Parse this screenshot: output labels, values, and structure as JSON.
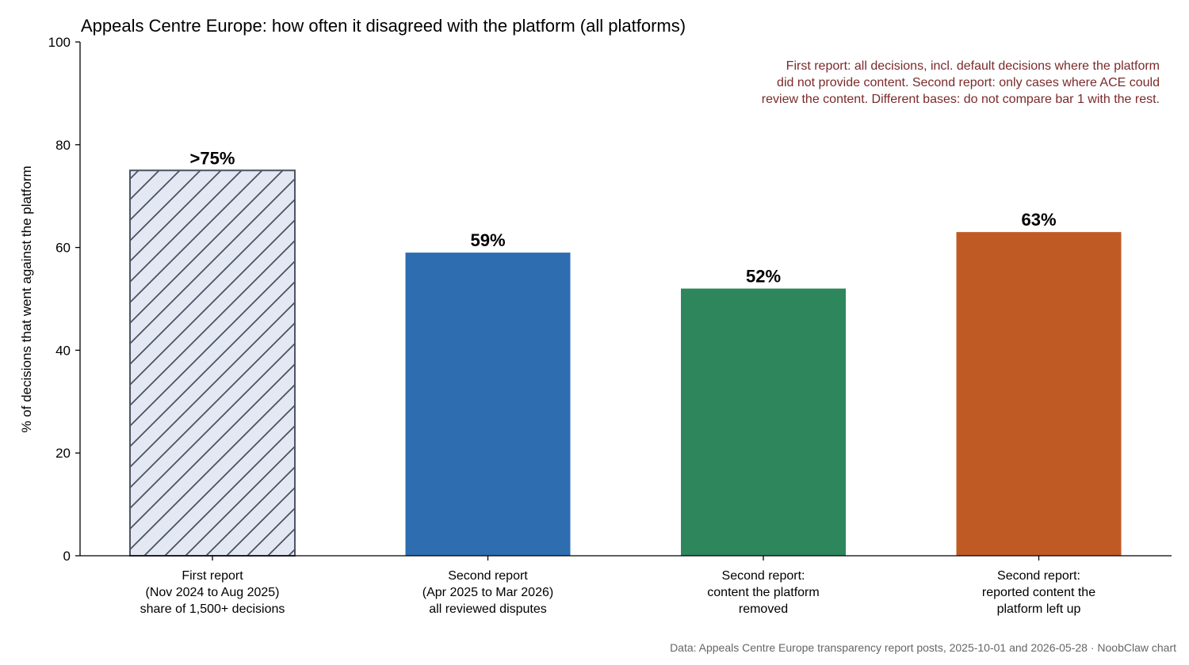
{
  "chart_data": {
    "type": "bar",
    "title": "Appeals Centre Europe: how often it disagreed with the platform (all platforms)",
    "xlabel": "",
    "ylabel": "% of decisions that went against the platform",
    "ylim": [
      0,
      100
    ],
    "yticks": [
      0,
      20,
      40,
      60,
      80,
      100
    ],
    "grid": false,
    "categories": [
      [
        "First report",
        "(Nov 2024 to Aug 2025)",
        "share of 1,500+ decisions"
      ],
      [
        "Second report",
        "(Apr 2025 to Mar 2026)",
        "all reviewed disputes"
      ],
      [
        "Second report:",
        "content the platform",
        "removed"
      ],
      [
        "Second report:",
        "reported content the",
        "platform left up"
      ]
    ],
    "values": [
      75,
      59,
      52,
      63
    ],
    "value_labels": [
      ">75%",
      "59%",
      "52%",
      "63%"
    ],
    "bar_styles": [
      {
        "fill": "#e3e8f2",
        "edge": "#4a5263",
        "hatch": true
      },
      {
        "fill": "#2d6db0",
        "edge": "#2d6db0",
        "hatch": false
      },
      {
        "fill": "#2e875c",
        "edge": "#2e875c",
        "hatch": false
      },
      {
        "fill": "#c05a24",
        "edge": "#c05a24",
        "hatch": false
      }
    ],
    "annotation": [
      "First report: all decisions, incl. default decisions where the platform",
      "did not provide content. Second report: only cases where ACE could",
      "review the content. Different bases: do not compare bar 1 with the rest."
    ],
    "annotation_color": "#7b2a2a",
    "source": "Data: Appeals Centre Europe transparency report posts, 2025-10-01 and 2026-05-28 · NoobClaw chart"
  }
}
